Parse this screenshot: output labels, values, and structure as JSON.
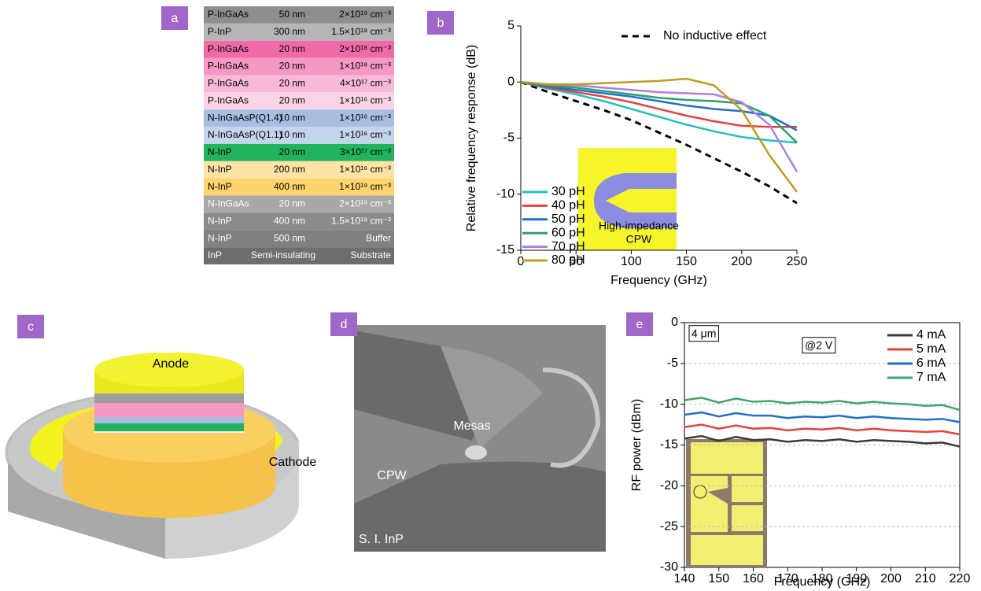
{
  "panel_labels": [
    "a",
    "b",
    "c",
    "d",
    "e"
  ],
  "table": {
    "rows": [
      [
        "P-InGaAs",
        "50 nm",
        "2×10¹⁹ cm⁻³"
      ],
      [
        "P-InP",
        "300 nm",
        "1.5×10¹⁸ cm⁻³"
      ],
      [
        "P-InGaAs",
        "20 nm",
        "2×10¹⁸ cm⁻³"
      ],
      [
        "P-InGaAs",
        "20 nm",
        "1×10¹⁸ cm⁻³"
      ],
      [
        "P-InGaAs",
        "20 nm",
        "4×10¹⁷ cm⁻³"
      ],
      [
        "P-InGaAs",
        "20 nm",
        "1×10¹⁶ cm⁻³"
      ],
      [
        "N-InGaAsP(Q1.4)",
        "10 nm",
        "1×10¹⁶ cm⁻³"
      ],
      [
        "N-InGaAsP(Q1.1)",
        "10 nm",
        "1×10¹⁶ cm⁻³"
      ],
      [
        "N-InP",
        "20 nm",
        "3×10¹⁷ cm⁻³"
      ],
      [
        "N-InP",
        "200 nm",
        "1×10¹⁶ cm⁻³"
      ],
      [
        "N-InP",
        "400 nm",
        "1×10¹⁹ cm⁻³"
      ],
      [
        "N-InGaAs",
        "20 nm",
        "2×10¹⁹ cm⁻³"
      ],
      [
        "N-InP",
        "400 nm",
        "1.5×10¹⁸ cm⁻³"
      ],
      [
        "N-InP",
        "500 nm",
        "Buffer"
      ],
      [
        "InP",
        "Semi-insulating",
        "Substrate"
      ]
    ],
    "colors": [
      "#8e8e8e",
      "#b5b5b5",
      "#f06aa8",
      "#f49ac2",
      "#f7b9d6",
      "#fad4e6",
      "#a8bee0",
      "#c4d4ec",
      "#22b35e",
      "#fde4a6",
      "#fcd36c",
      "#a8a8a8",
      "#8b8b8b",
      "#808080",
      "#6e6e6e"
    ]
  },
  "chart_data": [
    {
      "type": "line",
      "xlabel": "Frequency (GHz)",
      "ylabel": "Relative frequency response (dB)",
      "x": [
        0,
        25,
        50,
        75,
        100,
        125,
        150,
        175,
        200,
        225,
        250
      ],
      "xlim": [
        0,
        250
      ],
      "xticks": [
        0,
        50,
        100,
        150,
        200,
        250
      ],
      "ylim": [
        -15,
        5
      ],
      "yticks": [
        -15,
        -10,
        -5,
        0,
        5
      ],
      "grid": false,
      "inset_label": [
        "High-impedance",
        "CPW"
      ],
      "series": [
        {
          "name": "No inductive effect",
          "color": "#000000",
          "style": "dashed",
          "values": [
            0,
            -0.9,
            -1.7,
            -2.5,
            -3.4,
            -4.5,
            -5.6,
            -6.8,
            -8.0,
            -9.3,
            -10.8
          ]
        },
        {
          "name": "30 pH",
          "color": "#1fc0c0",
          "values": [
            0,
            -0.6,
            -1.1,
            -1.7,
            -2.4,
            -3.1,
            -3.8,
            -4.4,
            -4.9,
            -5.2,
            -5.4
          ]
        },
        {
          "name": "40 pH",
          "color": "#e8413c",
          "values": [
            0,
            -0.5,
            -0.9,
            -1.3,
            -1.8,
            -2.4,
            -3.0,
            -3.5,
            -3.9,
            -4.0,
            -4.0
          ]
        },
        {
          "name": "50 pH",
          "color": "#1f6fd0",
          "values": [
            0,
            -0.4,
            -0.7,
            -1.0,
            -1.3,
            -1.7,
            -2.1,
            -2.4,
            -2.6,
            -3.0,
            -4.3
          ]
        },
        {
          "name": "60 pH",
          "color": "#2aa36b",
          "values": [
            0,
            -0.3,
            -0.5,
            -0.8,
            -1.1,
            -1.4,
            -1.6,
            -1.7,
            -1.9,
            -3.0,
            -5.4
          ]
        },
        {
          "name": "70 pH",
          "color": "#b07ee0",
          "values": [
            0,
            -0.2,
            -0.3,
            -0.5,
            -0.7,
            -0.9,
            -1.0,
            -1.1,
            -1.8,
            -3.8,
            -8.0
          ]
        },
        {
          "name": "80 pH",
          "color": "#c49a1a",
          "values": [
            0,
            -0.2,
            -0.2,
            -0.1,
            0,
            0.1,
            0.3,
            -0.3,
            -2.5,
            -6.5,
            -9.8
          ]
        }
      ]
    },
    {
      "type": "line",
      "xlabel": "Frequency (GHz)",
      "ylabel": "RF power (dBm)",
      "x": [
        140,
        145,
        150,
        155,
        160,
        165,
        170,
        175,
        180,
        185,
        190,
        195,
        200,
        205,
        210,
        215,
        220
      ],
      "xlim": [
        140,
        220
      ],
      "xticks": [
        140,
        150,
        160,
        170,
        180,
        190,
        200,
        210,
        220
      ],
      "ylim": [
        -30,
        0
      ],
      "yticks": [
        -30,
        -25,
        -20,
        -15,
        -10,
        -5,
        0
      ],
      "grid": true,
      "annotations": [
        "4 μm",
        "@2 V"
      ],
      "series": [
        {
          "name": "4 mA",
          "color": "#3a3a3a",
          "values": [
            -14.2,
            -13.9,
            -14.5,
            -14.0,
            -14.4,
            -14.3,
            -14.6,
            -14.4,
            -14.5,
            -14.3,
            -14.6,
            -14.4,
            -14.5,
            -14.6,
            -14.8,
            -14.7,
            -15.2
          ]
        },
        {
          "name": "5 mA",
          "color": "#e8413c",
          "values": [
            -12.8,
            -12.5,
            -13.0,
            -12.6,
            -13.0,
            -12.9,
            -13.2,
            -13.0,
            -13.1,
            -12.9,
            -13.2,
            -13.0,
            -13.2,
            -13.3,
            -13.4,
            -13.3,
            -13.7
          ]
        },
        {
          "name": "6 mA",
          "color": "#1f6fd0",
          "values": [
            -11.3,
            -11.0,
            -11.5,
            -11.1,
            -11.4,
            -11.4,
            -11.7,
            -11.5,
            -11.6,
            -11.4,
            -11.7,
            -11.5,
            -11.7,
            -11.8,
            -11.9,
            -11.8,
            -12.2
          ]
        },
        {
          "name": "7 mA",
          "color": "#3aa86b",
          "values": [
            -9.5,
            -9.2,
            -9.8,
            -9.3,
            -9.7,
            -9.6,
            -9.9,
            -9.7,
            -9.8,
            -9.6,
            -9.9,
            -9.7,
            -9.9,
            -10.0,
            -10.2,
            -10.1,
            -10.7
          ]
        }
      ]
    }
  ],
  "illustration": {
    "anode": "Anode",
    "cathode": "Cathode"
  },
  "micrograph": {
    "labels": [
      "Mesas",
      "CPW",
      "S. I. InP"
    ]
  }
}
